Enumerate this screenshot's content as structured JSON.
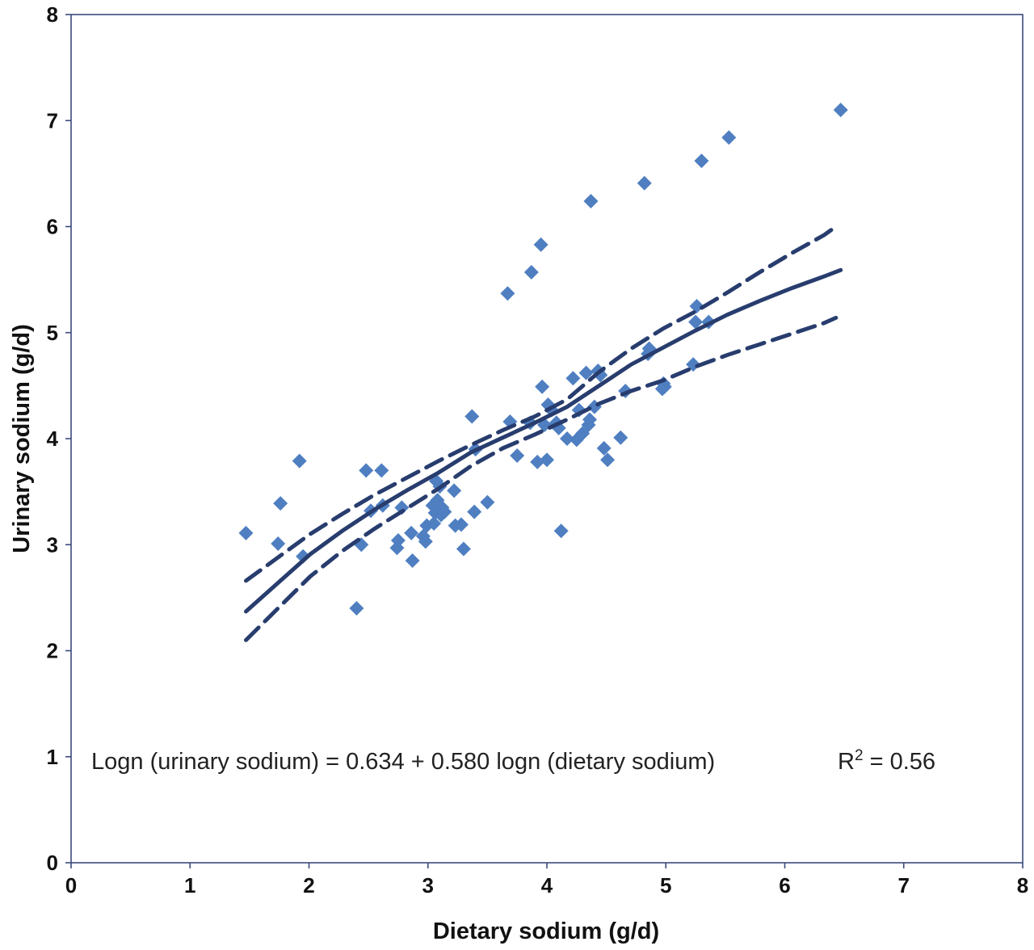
{
  "chart_data": {
    "type": "scatter",
    "title": "",
    "xlabel": "Dietary sodium (g/d)",
    "ylabel": "Urinary sodium (g/d)",
    "xlim": [
      0,
      8
    ],
    "ylim": [
      0,
      8
    ],
    "xticks": [
      "0",
      "1",
      "2",
      "3",
      "4",
      "5",
      "6",
      "7",
      "8"
    ],
    "yticks": [
      "0",
      "1",
      "2",
      "3",
      "4",
      "5",
      "6",
      "7",
      "8"
    ],
    "grid": false,
    "equation_text": "Logn (urinary sodium) =  0.634 + 0.580 logn (dietary sodium)",
    "r2_prefix": "R",
    "r2_superscript": "2",
    "r2_value": " =  0.56",
    "colors": {
      "points": "#4f7fc1",
      "lines": "#283d6e",
      "frame": "#3b4b7c"
    },
    "fit": {
      "solid_line": [
        [
          1.47,
          2.37
        ],
        [
          1.74,
          2.64
        ],
        [
          2.01,
          2.91
        ],
        [
          2.28,
          3.13
        ],
        [
          2.55,
          3.33
        ],
        [
          2.82,
          3.51
        ],
        [
          3.09,
          3.68
        ],
        [
          3.36,
          3.87
        ],
        [
          3.63,
          4.01
        ],
        [
          3.9,
          4.15
        ],
        [
          4.17,
          4.3
        ],
        [
          4.44,
          4.5
        ],
        [
          4.71,
          4.7
        ],
        [
          4.98,
          4.86
        ],
        [
          5.25,
          5.02
        ],
        [
          5.52,
          5.17
        ],
        [
          5.79,
          5.3
        ],
        [
          6.06,
          5.42
        ],
        [
          6.33,
          5.53
        ],
        [
          6.47,
          5.59
        ]
      ],
      "upper_dashed": [
        [
          1.47,
          2.66
        ],
        [
          1.74,
          2.88
        ],
        [
          2.01,
          3.1
        ],
        [
          2.28,
          3.29
        ],
        [
          2.55,
          3.47
        ],
        [
          2.82,
          3.63
        ],
        [
          3.09,
          3.79
        ],
        [
          3.36,
          3.94
        ],
        [
          3.63,
          4.08
        ],
        [
          3.9,
          4.21
        ],
        [
          4.17,
          4.37
        ],
        [
          4.44,
          4.63
        ],
        [
          4.71,
          4.85
        ],
        [
          4.98,
          5.04
        ],
        [
          5.25,
          5.2
        ],
        [
          5.52,
          5.38
        ],
        [
          5.79,
          5.57
        ],
        [
          6.06,
          5.75
        ],
        [
          6.33,
          5.92
        ],
        [
          6.43,
          6.0
        ]
      ],
      "lower_dashed": [
        [
          1.47,
          2.1
        ],
        [
          1.74,
          2.4
        ],
        [
          2.01,
          2.7
        ],
        [
          2.28,
          2.94
        ],
        [
          2.55,
          3.15
        ],
        [
          2.82,
          3.34
        ],
        [
          3.09,
          3.53
        ],
        [
          3.36,
          3.74
        ],
        [
          3.63,
          3.91
        ],
        [
          3.9,
          4.04
        ],
        [
          4.17,
          4.18
        ],
        [
          4.44,
          4.33
        ],
        [
          4.71,
          4.45
        ],
        [
          4.98,
          4.55
        ],
        [
          5.25,
          4.68
        ],
        [
          5.52,
          4.79
        ],
        [
          5.79,
          4.89
        ],
        [
          6.06,
          4.99
        ],
        [
          6.33,
          5.09
        ],
        [
          6.43,
          5.14
        ]
      ]
    },
    "points": [
      [
        1.47,
        3.11
      ],
      [
        1.74,
        3.01
      ],
      [
        1.76,
        3.39
      ],
      [
        1.92,
        3.79
      ],
      [
        1.95,
        2.89
      ],
      [
        2.4,
        2.4
      ],
      [
        2.44,
        3.0
      ],
      [
        2.48,
        3.7
      ],
      [
        2.52,
        3.32
      ],
      [
        2.61,
        3.7
      ],
      [
        2.62,
        3.37
      ],
      [
        2.74,
        2.97
      ],
      [
        2.75,
        3.04
      ],
      [
        2.78,
        3.35
      ],
      [
        2.86,
        3.11
      ],
      [
        2.87,
        2.85
      ],
      [
        2.96,
        3.08
      ],
      [
        2.98,
        3.03
      ],
      [
        2.99,
        3.18
      ],
      [
        3.04,
        3.37
      ],
      [
        3.05,
        3.2
      ],
      [
        3.06,
        3.3
      ],
      [
        3.07,
        3.6
      ],
      [
        3.08,
        3.42
      ],
      [
        3.09,
        3.32
      ],
      [
        3.1,
        3.55
      ],
      [
        3.11,
        3.28
      ],
      [
        3.12,
        3.35
      ],
      [
        3.14,
        3.31
      ],
      [
        3.22,
        3.51
      ],
      [
        3.23,
        3.18
      ],
      [
        3.28,
        3.19
      ],
      [
        3.3,
        2.96
      ],
      [
        3.37,
        4.21
      ],
      [
        3.39,
        3.31
      ],
      [
        3.4,
        3.9
      ],
      [
        3.5,
        3.4
      ],
      [
        3.67,
        5.37
      ],
      [
        3.69,
        4.16
      ],
      [
        3.75,
        3.84
      ],
      [
        3.86,
        4.15
      ],
      [
        3.87,
        5.57
      ],
      [
        3.92,
        3.78
      ],
      [
        3.95,
        5.83
      ],
      [
        3.96,
        4.49
      ],
      [
        3.98,
        4.13
      ],
      [
        4.0,
        3.8
      ],
      [
        4.01,
        4.32
      ],
      [
        4.04,
        4.27
      ],
      [
        4.08,
        4.15
      ],
      [
        4.1,
        4.1
      ],
      [
        4.12,
        3.13
      ],
      [
        4.17,
        4.0
      ],
      [
        4.22,
        4.57
      ],
      [
        4.25,
        3.99
      ],
      [
        4.27,
        4.27
      ],
      [
        4.3,
        4.05
      ],
      [
        4.33,
        4.62
      ],
      [
        4.35,
        4.13
      ],
      [
        4.36,
        4.18
      ],
      [
        4.37,
        6.24
      ],
      [
        4.4,
        4.3
      ],
      [
        4.43,
        4.64
      ],
      [
        4.45,
        4.6
      ],
      [
        4.48,
        3.91
      ],
      [
        4.51,
        3.8
      ],
      [
        4.62,
        4.01
      ],
      [
        4.66,
        4.45
      ],
      [
        4.82,
        6.41
      ],
      [
        4.85,
        4.8
      ],
      [
        4.86,
        4.85
      ],
      [
        4.97,
        4.47
      ],
      [
        4.98,
        4.52
      ],
      [
        4.99,
        4.49
      ],
      [
        5.23,
        4.7
      ],
      [
        5.25,
        5.1
      ],
      [
        5.26,
        5.25
      ],
      [
        5.3,
        6.62
      ],
      [
        5.36,
        5.1
      ],
      [
        5.53,
        6.84
      ],
      [
        6.47,
        7.1
      ]
    ]
  }
}
